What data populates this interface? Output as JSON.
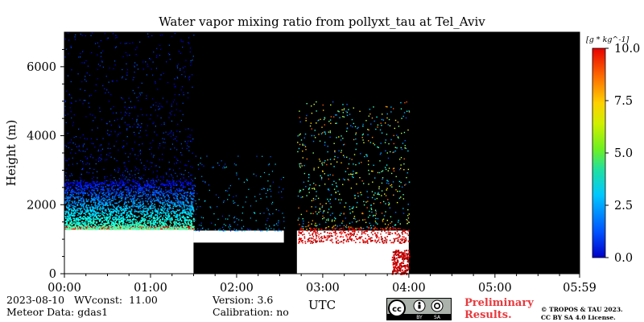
{
  "chart_data": {
    "type": "heatmap",
    "title": "Water vapor mixing ratio from pollyxt_tau at Tel_Aviv",
    "xlabel": "UTC",
    "ylabel": "Height (m)",
    "x_tick_labels": [
      "00:00",
      "01:00",
      "02:00",
      "03:00",
      "04:00",
      "05:00",
      "05:59"
    ],
    "x_tick_hours": [
      0,
      1,
      2,
      3,
      4,
      5,
      5.983
    ],
    "x_range_hours": [
      0,
      5.983
    ],
    "y_ticks": [
      0,
      2000,
      4000,
      6000
    ],
    "y_tick_labels": [
      "0",
      "2000",
      "4000",
      "6000"
    ],
    "ylim": [
      0,
      7000
    ],
    "colorbar": {
      "unit": "[g * kg^-1]",
      "ticks": [
        0.0,
        2.5,
        5.0,
        7.5,
        10.0
      ],
      "tick_labels": [
        "0.0",
        "2.5",
        "5.0",
        "7.5",
        "10.0"
      ],
      "range": [
        0,
        10
      ],
      "colormap": "jet"
    },
    "background_color": "#000000",
    "no_signal_color": "#ffffff",
    "regions": [
      {
        "t_start": 0.0,
        "t_end": 1.5,
        "wv_layer_top_m": 1300,
        "moist_band_m": [
          1300,
          2700
        ],
        "sparse_to_m": 5000,
        "min_valid_height_m": 0
      },
      {
        "t_start": 1.5,
        "t_end": 2.55,
        "wv_layer_top_m": 1250,
        "min_valid_height_m": 900
      },
      {
        "t_start": 2.55,
        "t_end": 2.7,
        "fully_missing": true
      },
      {
        "t_start": 2.7,
        "t_end": 4.0,
        "wv_layer_top_m": 1250,
        "sparse_to_m": 5000,
        "min_valid_height_m": 0
      },
      {
        "t_start": 4.0,
        "t_end": 5.983,
        "fully_missing": true
      }
    ]
  },
  "footer": {
    "date": "2023-08-10",
    "wvconst_label": "WVconst:",
    "wvconst_value": "11.00",
    "meteor_label": "Meteor Data:",
    "meteor_value": "gdas1",
    "version_label": "Version:",
    "version_value": "3.6",
    "calibration_label": "Calibration:",
    "calibration_value": "no",
    "preliminary_line1": "Preliminary",
    "preliminary_line2": "Results.",
    "copyright_line1": "© TROPOS & TAU 2023.",
    "copyright_line2": "CC BY SA 4.0 License.",
    "license_badge_text": [
      "BY",
      "SA"
    ]
  }
}
